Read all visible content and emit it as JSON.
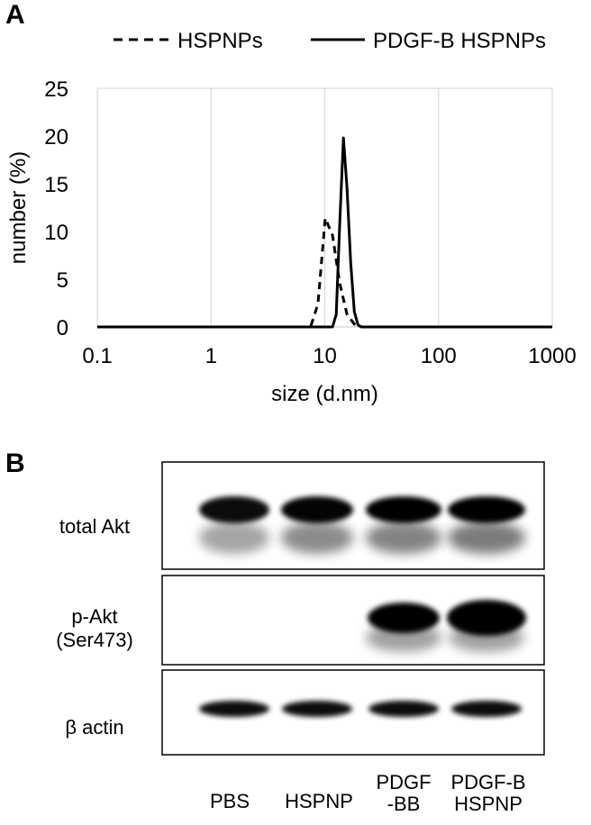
{
  "panels": {
    "a_letter": "A",
    "b_letter": "B"
  },
  "chart_data": {
    "type": "line",
    "xscale": "log",
    "xlim": [
      0.1,
      1000
    ],
    "ylim": [
      0,
      25
    ],
    "xticks": [
      "0.1",
      "1",
      "10",
      "100",
      "1000"
    ],
    "yticks": [
      "0",
      "5",
      "10",
      "15",
      "20",
      "25"
    ],
    "xlabel": "size (d.nm)",
    "ylabel": "number (%)",
    "grid": "vertical",
    "legend_position": "top",
    "series": [
      {
        "name": "HSPNPs",
        "style": "dashed",
        "color": "#000000",
        "x": [
          0.1,
          7.5,
          8.7,
          10.1,
          11.7,
          13.5,
          15.7,
          18.2,
          21.0,
          30,
          100,
          1000
        ],
        "y": [
          0,
          0,
          2.4,
          11.4,
          9.6,
          4.6,
          1.3,
          0.3,
          0,
          0,
          0,
          0
        ]
      },
      {
        "name": "PDGF-B HSPNPs",
        "style": "solid",
        "color": "#000000",
        "x": [
          0.1,
          11.7,
          12.6,
          13.5,
          14.6,
          15.7,
          16.9,
          18.2,
          19.6,
          21.0,
          40,
          100,
          1000
        ],
        "y": [
          0,
          0,
          1.3,
          10.6,
          19.8,
          14.5,
          6.7,
          1.6,
          0.2,
          0,
          0,
          0,
          0
        ]
      }
    ]
  },
  "blot": {
    "rows": [
      {
        "label": "total Akt"
      },
      {
        "label": "p-Akt\n(Ser473)"
      },
      {
        "label": "β actin"
      }
    ],
    "lanes": [
      {
        "label": "PBS"
      },
      {
        "label": "HSPNP"
      },
      {
        "label": "PDGF\n-BB"
      },
      {
        "label": "PDGF-B\nHSPNP"
      }
    ]
  }
}
